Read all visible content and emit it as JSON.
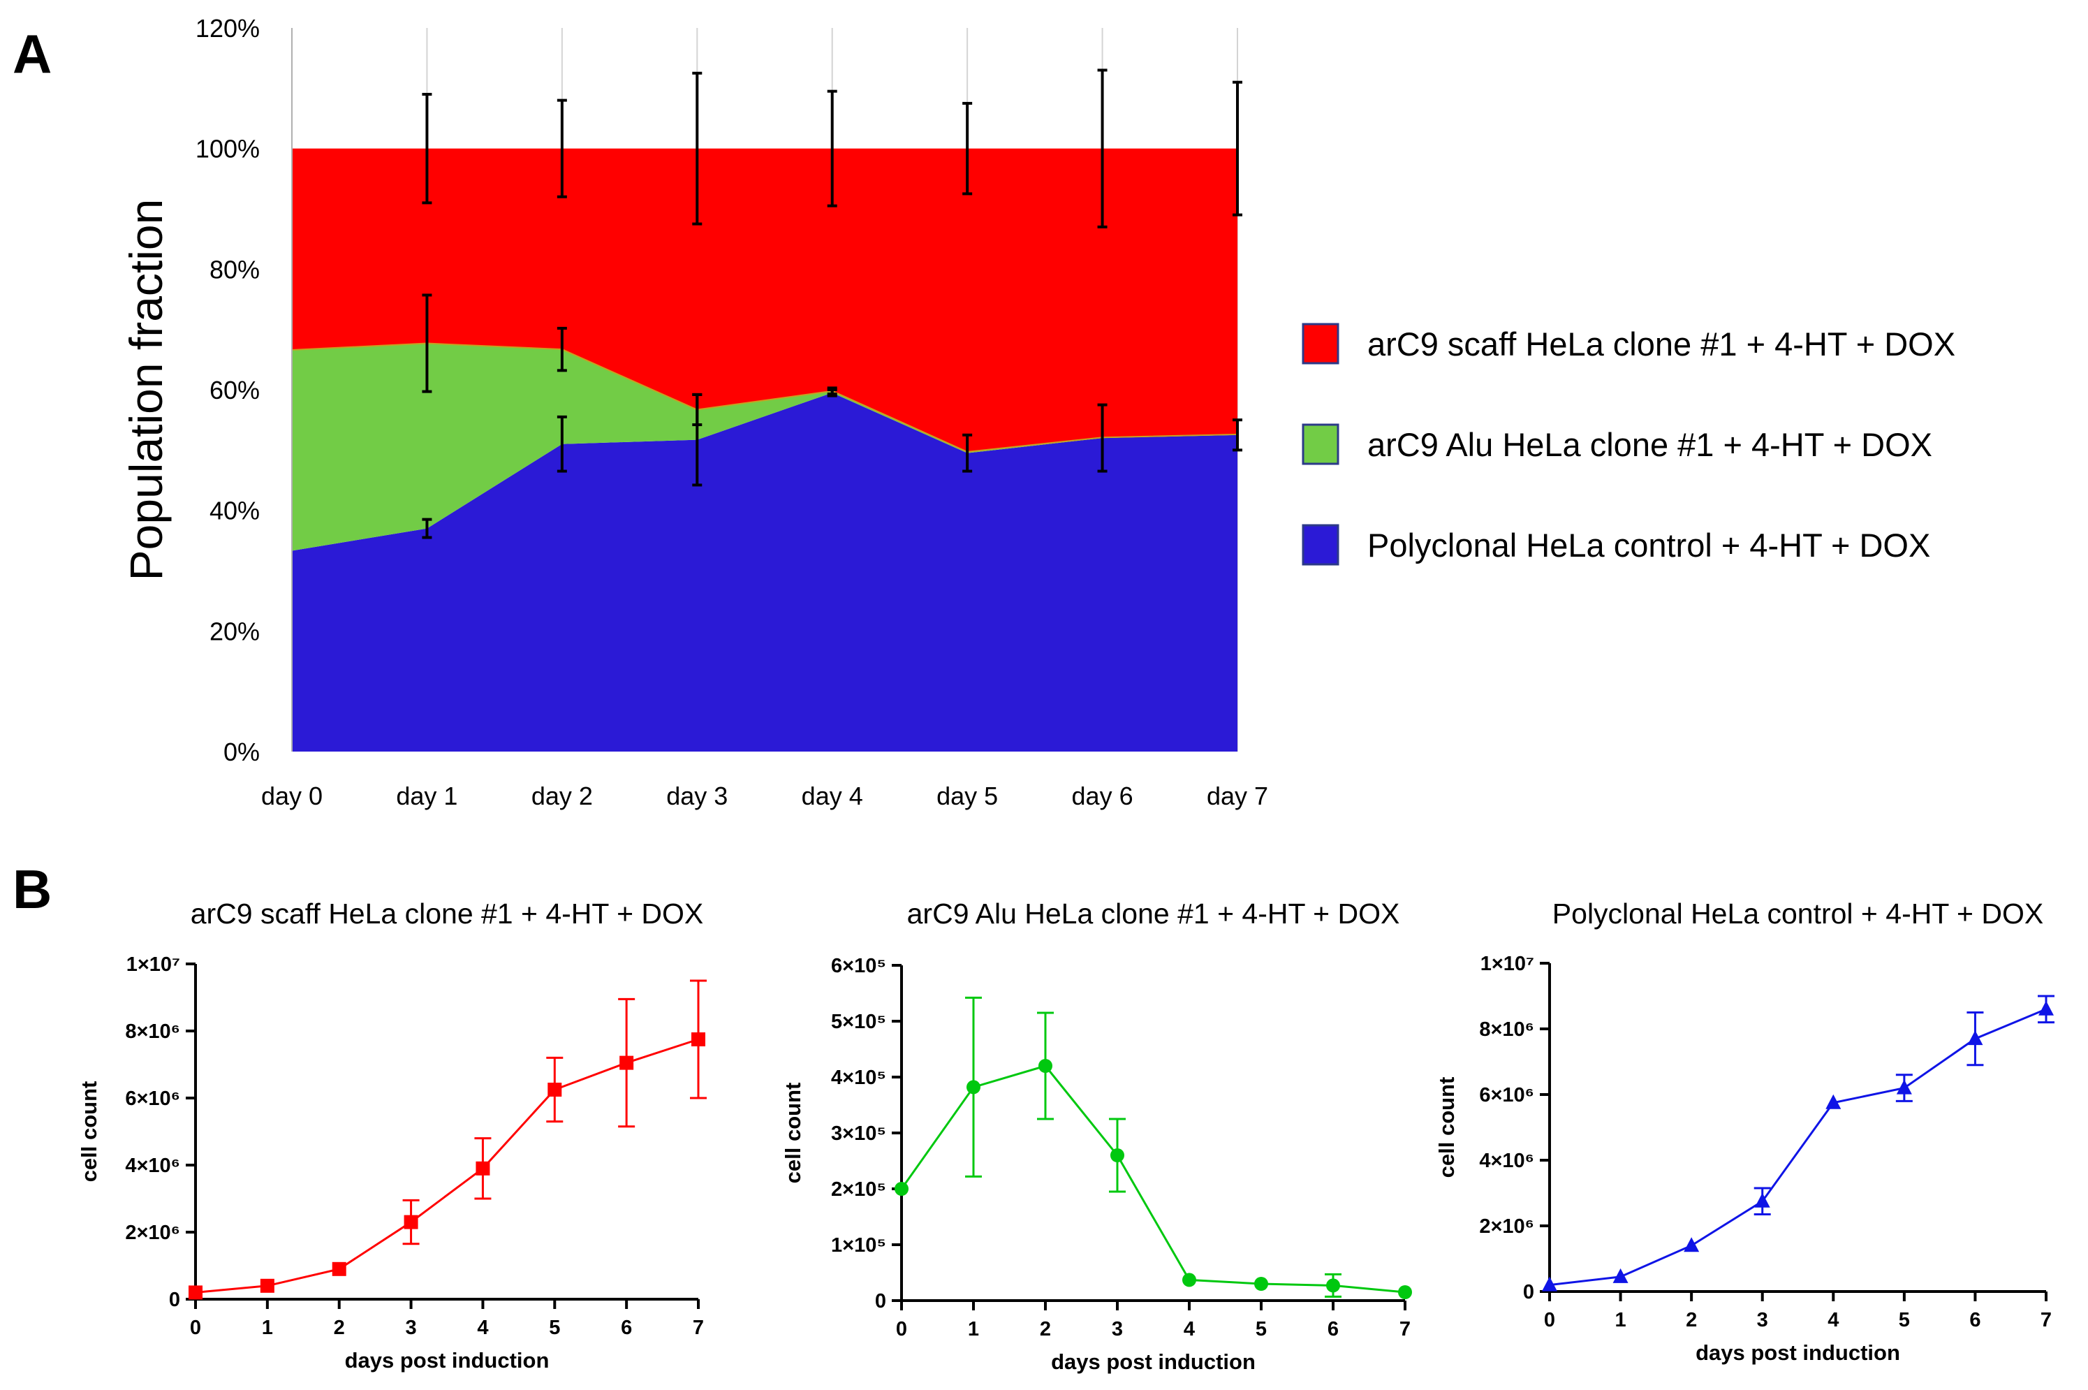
{
  "panels": {
    "a_label": "A",
    "b_label": "B"
  },
  "chart_data": [
    {
      "type": "area",
      "stacked": true,
      "title": "",
      "xlabel": "",
      "ylabel": "Population fraction",
      "categories": [
        "day 0",
        "day 1",
        "day 2",
        "day 3",
        "day 4",
        "day 5",
        "day 6",
        "day 7"
      ],
      "ylim": [
        0,
        120
      ],
      "yticks": [
        "0%",
        "20%",
        "40%",
        "60%",
        "80%",
        "100%",
        "120%"
      ],
      "grid": "vertical",
      "legend": "right",
      "series": [
        {
          "name": "Polyclonal HeLa control + 4-HT + DOX",
          "color": "#2b1ad6",
          "values": [
            33.3,
            37,
            51,
            51.7,
            59.5,
            49.5,
            52,
            52.5
          ],
          "errors": [
            null,
            1.5,
            4.5,
            7.5,
            0.5,
            3,
            5.5,
            2.5
          ]
        },
        {
          "name": "arC9 Alu HeLa clone #1 + 4-HT + DOX",
          "color": "#72cc46",
          "values": [
            33.3,
            30.7,
            15.7,
            5,
            0.3,
            0.2,
            0.1,
            0.1
          ],
          "errors": [
            null,
            8,
            3.5,
            2.5,
            0.5,
            null,
            null,
            null
          ]
        },
        {
          "name": "arC9 scaff HeLa clone #1 + 4-HT + DOX",
          "color": "#ff0000",
          "values": [
            33.4,
            32.3,
            33.3,
            43.3,
            40.2,
            50.3,
            47.9,
            47.4
          ],
          "errors": [
            null,
            9,
            8,
            12.5,
            9.5,
            7.5,
            13,
            11
          ]
        }
      ]
    },
    {
      "type": "line",
      "title": "arC9 scaff HeLa clone #1 + 4-HT + DOX",
      "xlabel": "days post induction",
      "ylabel": "cell count",
      "color": "#ff0000",
      "marker": "square",
      "x": [
        0,
        1,
        2,
        3,
        4,
        5,
        6,
        7
      ],
      "y": [
        200000,
        400000,
        900000,
        2300000,
        3900000,
        6250000,
        7050000,
        7750000
      ],
      "yerr": [
        0,
        0,
        0,
        650000,
        900000,
        950000,
        1900000,
        1750000
      ],
      "xlim": [
        0,
        7
      ],
      "ylim": [
        0,
        10000000
      ],
      "yticks": [
        {
          "value": 0,
          "label": "0"
        },
        {
          "value": 2000000,
          "label": "2×10⁶"
        },
        {
          "value": 4000000,
          "label": "4×10⁶"
        },
        {
          "value": 6000000,
          "label": "6×10⁶"
        },
        {
          "value": 8000000,
          "label": "8×10⁶"
        },
        {
          "value": 10000000,
          "label": "1×10⁷"
        }
      ]
    },
    {
      "type": "line",
      "title": "arC9 Alu HeLa clone #1 + 4-HT + DOX",
      "xlabel": "days post induction",
      "ylabel": "cell count",
      "color": "#00c80f",
      "marker": "circle",
      "x": [
        0,
        1,
        2,
        3,
        4,
        5,
        6,
        7
      ],
      "y": [
        200000,
        382000,
        420000,
        260000,
        37000,
        30000,
        27000,
        15000
      ],
      "yerr": [
        0,
        160000,
        95000,
        65000,
        0,
        0,
        20000,
        0
      ],
      "xlim": [
        0,
        7
      ],
      "ylim": [
        0,
        600000
      ],
      "yticks": [
        {
          "value": 0,
          "label": "0"
        },
        {
          "value": 100000,
          "label": "1×10⁵"
        },
        {
          "value": 200000,
          "label": "2×10⁵"
        },
        {
          "value": 300000,
          "label": "3×10⁵"
        },
        {
          "value": 400000,
          "label": "4×10⁵"
        },
        {
          "value": 500000,
          "label": "5×10⁵"
        },
        {
          "value": 600000,
          "label": "6×10⁵"
        }
      ]
    },
    {
      "type": "line",
      "title": "Polyclonal HeLa control + 4-HT + DOX",
      "xlabel": "days post induction",
      "ylabel": "cell count",
      "color": "#0f14e6",
      "marker": "triangle",
      "x": [
        0,
        1,
        2,
        3,
        4,
        5,
        6,
        7
      ],
      "y": [
        200000,
        450000,
        1400000,
        2750000,
        5750000,
        6200000,
        7700000,
        8600000
      ],
      "yerr": [
        0,
        0,
        0,
        400000,
        0,
        400000,
        800000,
        400000
      ],
      "xlim": [
        0,
        7
      ],
      "ylim": [
        0,
        10000000
      ],
      "yticks": [
        {
          "value": 0,
          "label": "0"
        },
        {
          "value": 2000000,
          "label": "2×10⁶"
        },
        {
          "value": 4000000,
          "label": "4×10⁶"
        },
        {
          "value": 6000000,
          "label": "6×10⁶"
        },
        {
          "value": 8000000,
          "label": "8×10⁶"
        },
        {
          "value": 10000000,
          "label": "1×10⁷"
        }
      ]
    }
  ]
}
